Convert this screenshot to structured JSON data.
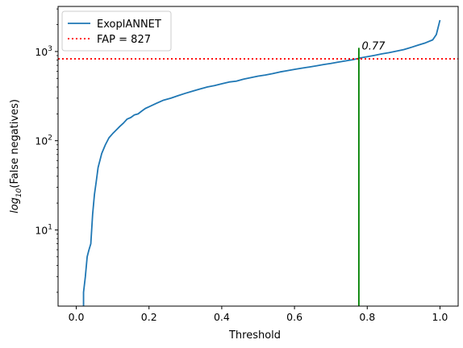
{
  "chart_data": {
    "type": "line",
    "xlabel": "Threshold",
    "ylabel_main": "log",
    "ylabel_sub": "10",
    "ylabel_rest": "(False negatives)",
    "x_scale": "linear",
    "y_scale": "log",
    "xlim": [
      -0.05,
      1.05
    ],
    "ylim": [
      1.4,
      3200
    ],
    "x_ticks": [
      0.0,
      0.2,
      0.4,
      0.6,
      0.8,
      1.0
    ],
    "x_tick_labels": [
      "0.0",
      "0.2",
      "0.4",
      "0.6",
      "0.8",
      "1.0"
    ],
    "y_ticks": [
      {
        "value": 10,
        "base": "10",
        "exp": "1"
      },
      {
        "value": 100,
        "base": "10",
        "exp": "2"
      },
      {
        "value": 1000,
        "base": "10",
        "exp": "3"
      }
    ],
    "grid": false,
    "legend_position": "top-left",
    "series": [
      {
        "name": "ExoplANNET",
        "color": "#1f77b4",
        "style": "solid",
        "x": [
          0.02,
          0.02,
          0.025,
          0.03,
          0.035,
          0.04,
          0.045,
          0.05,
          0.055,
          0.06,
          0.07,
          0.08,
          0.09,
          0.1,
          0.11,
          0.12,
          0.13,
          0.14,
          0.15,
          0.16,
          0.17,
          0.18,
          0.19,
          0.2,
          0.22,
          0.24,
          0.26,
          0.28,
          0.3,
          0.32,
          0.34,
          0.36,
          0.38,
          0.4,
          0.42,
          0.44,
          0.46,
          0.48,
          0.5,
          0.52,
          0.54,
          0.56,
          0.58,
          0.6,
          0.62,
          0.64,
          0.66,
          0.68,
          0.7,
          0.72,
          0.74,
          0.76,
          0.77,
          0.78,
          0.8,
          0.82,
          0.84,
          0.86,
          0.88,
          0.9,
          0.92,
          0.94,
          0.96,
          0.98,
          0.99,
          1.0
        ],
        "y": [
          1.2,
          2.0,
          3.0,
          5.0,
          6.0,
          7.0,
          15.0,
          25.0,
          35.0,
          50.0,
          72.0,
          90.0,
          108.0,
          120.0,
          132.0,
          145.0,
          158.0,
          175.0,
          182.0,
          195.0,
          200.0,
          215.0,
          230.0,
          240.0,
          262.0,
          285.0,
          300.0,
          320.0,
          340.0,
          360.0,
          380.0,
          400.0,
          415.0,
          435.0,
          455.0,
          465.0,
          490.0,
          510.0,
          530.0,
          545.0,
          565.0,
          590.0,
          610.0,
          630.0,
          650.0,
          670.0,
          690.0,
          715.0,
          735.0,
          760.0,
          785.0,
          810.0,
          827.0,
          845.0,
          875.0,
          905.0,
          940.0,
          970.0,
          1010.0,
          1050.0,
          1110.0,
          1180.0,
          1250.0,
          1350.0,
          1550.0,
          2250.0
        ]
      },
      {
        "name": "FAP = 827",
        "color": "#ff0000",
        "style": "dotted",
        "y_value": 827
      }
    ],
    "vline": {
      "x": 0.777,
      "y_top": 1100,
      "color": "#008000"
    },
    "annotations": [
      {
        "text": "0.77",
        "x": 0.785,
        "y": 1100
      }
    ]
  }
}
